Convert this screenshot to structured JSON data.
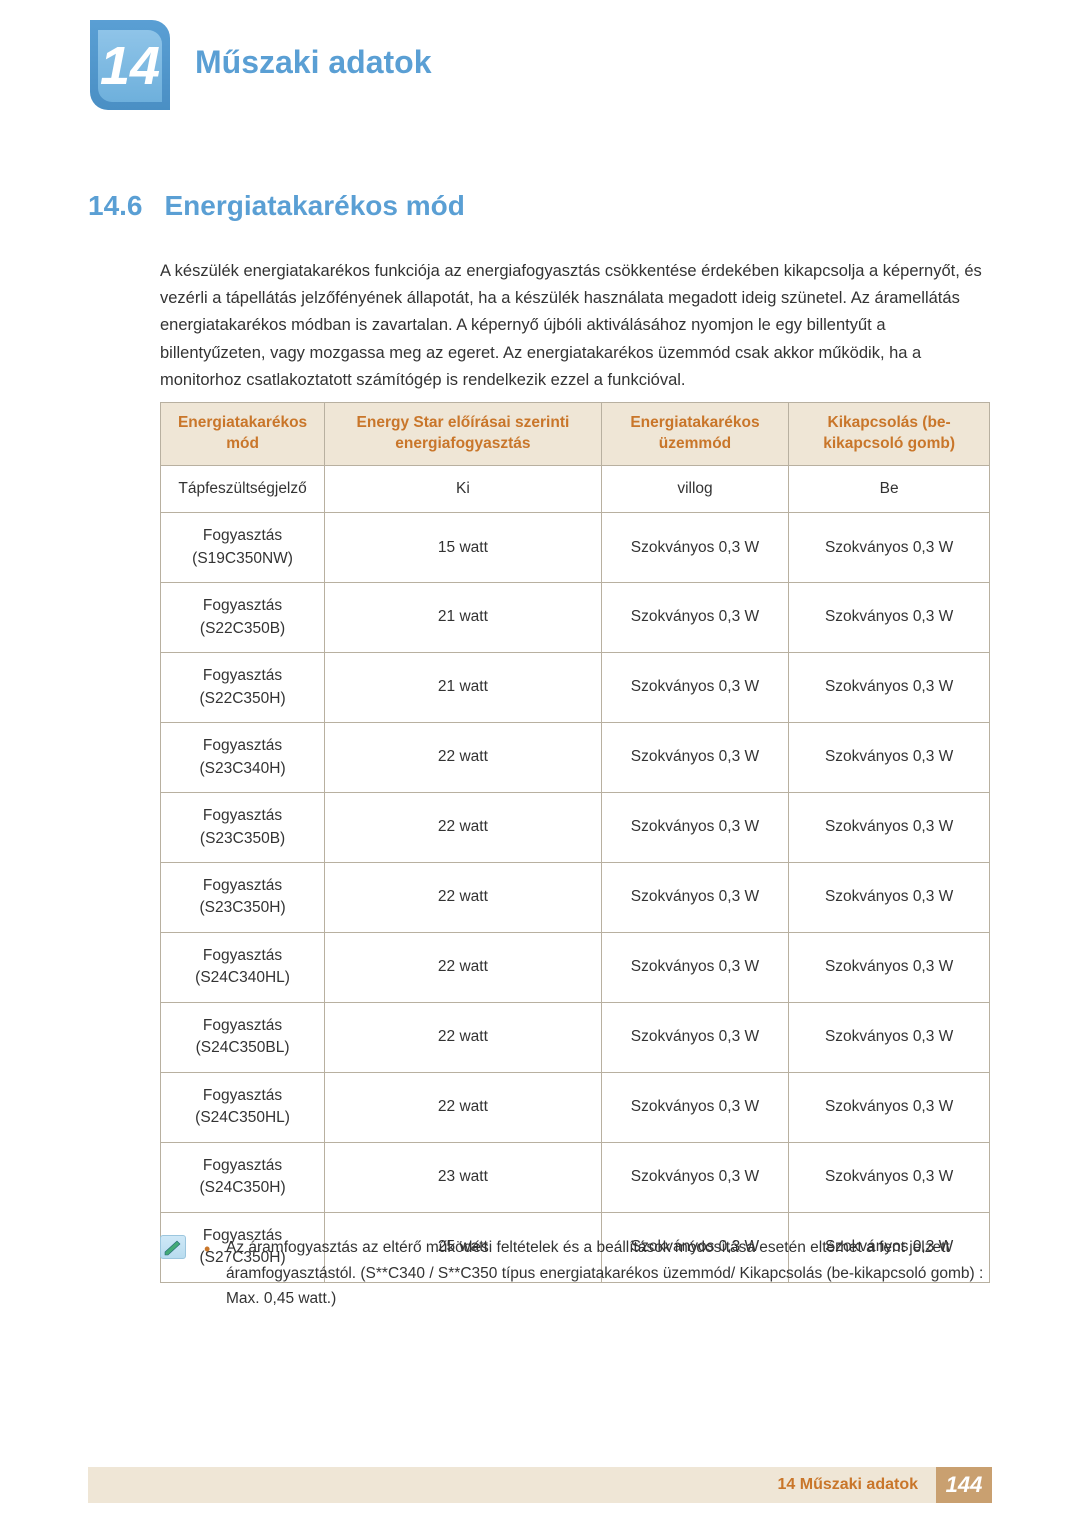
{
  "chapter": {
    "number": "14",
    "title": "Műszaki adatok"
  },
  "section": {
    "number": "14.6",
    "title": "Energiatakarékos mód"
  },
  "body": "A készülék energiatakarékos funkciója az energiafogyasztás csökkentése érdekében kikapcsolja a képernyőt, és vezérli a tápellátás jelzőfényének állapotát, ha a készülék használata megadott ideig szünetel. Az áramellátás energiatakarékos módban is zavartalan. A képernyő újbóli aktiválásához nyomjon le egy billentyűt a billentyűzeten, vagy mozgassa meg az egeret. Az energiatakarékos üzemmód csak akkor működik, ha a monitorhoz csatlakoztatott számítógép is rendelkezik ezzel a funkcióval.",
  "table": {
    "header_bg": "#efe6d6",
    "header_color": "#c9762a",
    "border_color": "#b8b0a0",
    "columns": [
      "Energiatakarékos mód",
      "Energy Star előírásai szerinti energiafogyasztás",
      "Energiatakarékos üzemmód",
      "Kikapcsolás (be-kikapcsoló gomb)"
    ],
    "rows": [
      [
        "Tápfeszültségjelző",
        "Ki",
        "villog",
        "Be"
      ],
      [
        "Fogyasztás\n(S19C350NW)",
        "15 watt",
        "Szokványos 0,3 W",
        "Szokványos 0,3 W"
      ],
      [
        "Fogyasztás\n(S22C350B)",
        "21 watt",
        "Szokványos 0,3 W",
        "Szokványos 0,3 W"
      ],
      [
        "Fogyasztás\n(S22C350H)",
        "21 watt",
        "Szokványos 0,3 W",
        "Szokványos 0,3 W"
      ],
      [
        "Fogyasztás\n(S23C340H)",
        "22 watt",
        "Szokványos 0,3 W",
        "Szokványos 0,3 W"
      ],
      [
        "Fogyasztás\n(S23C350B)",
        "22 watt",
        "Szokványos 0,3 W",
        "Szokványos 0,3 W"
      ],
      [
        "Fogyasztás\n(S23C350H)",
        "22 watt",
        "Szokványos 0,3 W",
        "Szokványos 0,3 W"
      ],
      [
        "Fogyasztás\n(S24C340HL)",
        "22 watt",
        "Szokványos 0,3 W",
        "Szokványos 0,3 W"
      ],
      [
        "Fogyasztás\n(S24C350BL)",
        "22 watt",
        "Szokványos 0,3 W",
        "Szokványos 0,3 W"
      ],
      [
        "Fogyasztás\n(S24C350HL)",
        "22 watt",
        "Szokványos 0,3 W",
        "Szokványos 0,3 W"
      ],
      [
        "Fogyasztás\n(S24C350H)",
        "23 watt",
        "Szokványos 0,3 W",
        "Szokványos 0,3 W"
      ],
      [
        "Fogyasztás\n(S27C350H)",
        "25 watt",
        "Szokványos 0,3 W",
        "Szokványos 0,3 W"
      ]
    ]
  },
  "note": "Az áramfogyasztás az eltérő működési feltételek és a beállítások módosítása esetén eltérhet a fent jelzett áramfogyasztástól. (S**C340 / S**C350 típus energiatakarékos üzemmód/ Kikapcsolás (be-kikapcsoló gomb) : Max. 0,45 watt.)",
  "footer": {
    "label": "14 Műszaki adatok",
    "page": "144"
  }
}
